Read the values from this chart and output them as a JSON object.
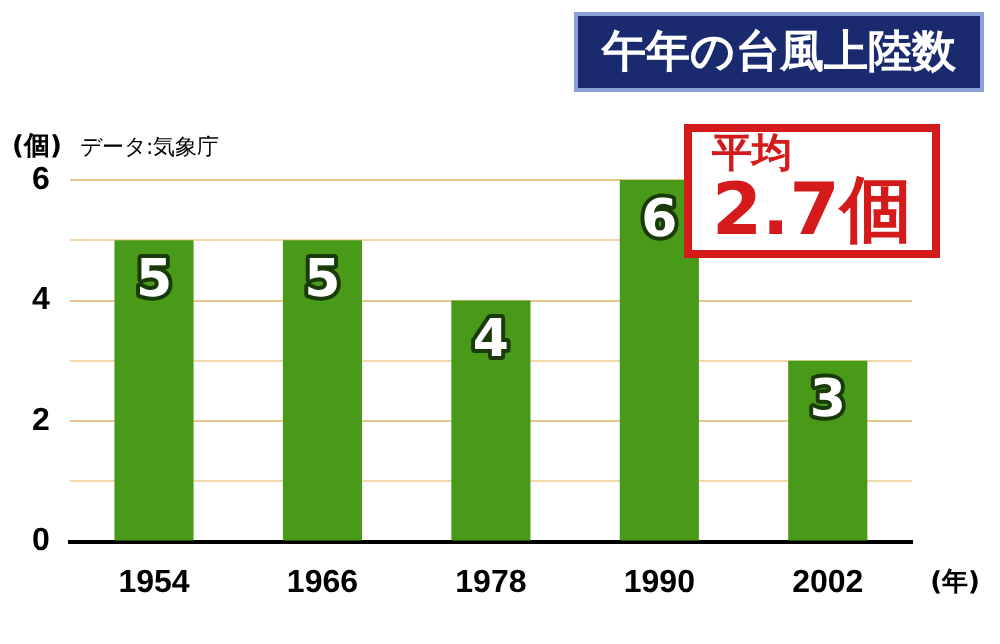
{
  "chart_data": {
    "type": "bar",
    "title": "午年の台風上陸数",
    "ylabel": "(個)",
    "xlabel": "(年)",
    "annotations": [
      "データ:気象庁",
      "平均",
      "2.7個"
    ],
    "categories": [
      "1954",
      "1966",
      "1978",
      "1990",
      "2002"
    ],
    "values": [
      5,
      5,
      4,
      6,
      3
    ],
    "color": "#4a9a1a",
    "ylim": [
      0,
      6
    ],
    "yticks": [
      0,
      {
        "value": 1,
        "label": null
      },
      2,
      {
        "value": 3,
        "label": null
      },
      4,
      {
        "value": 5,
        "label": null
      },
      6
    ],
    "grid": "y",
    "data_labels": true,
    "legend": false
  }
}
